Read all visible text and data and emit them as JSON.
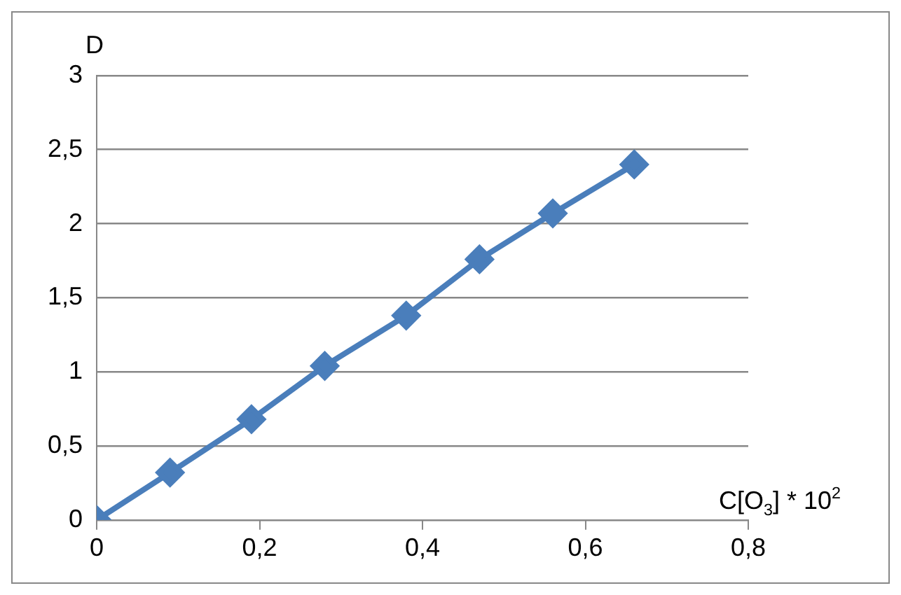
{
  "chart_data": {
    "type": "line",
    "xlabel": "C[O$_{3}$] * 10$^{2}$",
    "ylabel": "D",
    "series": [
      {
        "x": [
          0,
          0.09,
          0.19,
          0.28,
          0.38,
          0.47,
          0.56,
          0.66
        ],
        "values": [
          0,
          0.32,
          0.68,
          1.04,
          1.38,
          1.76,
          2.07,
          2.4
        ],
        "color": "#4a7ebb"
      }
    ],
    "xlim": [
      0,
      0.8
    ],
    "xticks": [
      0,
      {
        "value": 0.2,
        "label": "0,2"
      },
      {
        "value": 0.4,
        "label": "0,4"
      },
      {
        "value": 0.6,
        "label": "0,6"
      },
      {
        "value": 0.8,
        "label": "0,8"
      }
    ],
    "ylim": [
      0,
      3
    ],
    "yticks": [
      0,
      {
        "value": 0.5,
        "label": "0,5"
      },
      1,
      {
        "value": 1.5,
        "label": "1,5"
      },
      2,
      {
        "value": 2.5,
        "label": "2,5"
      },
      3
    ],
    "grid": "y",
    "legend": false,
    "marker": "diamond",
    "line_style": "solid"
  }
}
